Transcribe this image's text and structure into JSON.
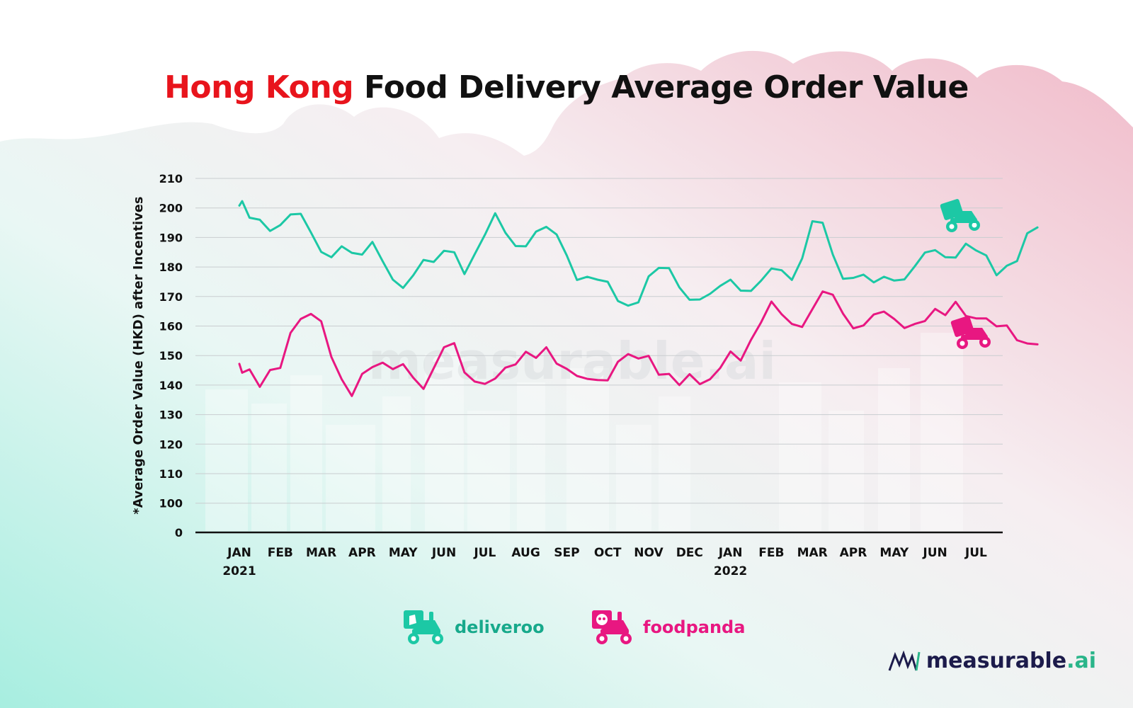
{
  "title": {
    "highlight": "Hong Kong",
    "rest": " Food Delivery Average Order Value"
  },
  "watermark": "measurable.ai",
  "brand": {
    "name": "measurable",
    "suffix": ".ai",
    "logo_icon": "measurable-logo-icon"
  },
  "colors": {
    "deliveroo": "#1cc8a5",
    "foodpanda": "#e81781",
    "title_highlight": "#e8141c",
    "brand": "#1c1b4b",
    "brand_accent": "#2ab58a"
  },
  "chart_data": {
    "type": "line",
    "title": "Hong Kong Food Delivery Average Order Value",
    "xlabel": "",
    "ylabel": "*Average Order Value (HKD) after Incentives",
    "yticks": [
      0,
      100,
      110,
      120,
      130,
      140,
      150,
      160,
      170,
      180,
      190,
      200,
      210
    ],
    "ylim": [
      90,
      210
    ],
    "axis_break": "0 shown at bottom; scale runs 100–210",
    "x_ticks": [
      {
        "label": "JAN",
        "sub": "2021"
      },
      {
        "label": "FEB",
        "sub": ""
      },
      {
        "label": "MAR",
        "sub": ""
      },
      {
        "label": "APR",
        "sub": ""
      },
      {
        "label": "MAY",
        "sub": ""
      },
      {
        "label": "JUN",
        "sub": ""
      },
      {
        "label": "JUL",
        "sub": ""
      },
      {
        "label": "AUG",
        "sub": ""
      },
      {
        "label": "SEP",
        "sub": ""
      },
      {
        "label": "OCT",
        "sub": ""
      },
      {
        "label": "NOV",
        "sub": ""
      },
      {
        "label": "DEC",
        "sub": ""
      },
      {
        "label": "JAN",
        "sub": "2022"
      },
      {
        "label": "FEB",
        "sub": ""
      },
      {
        "label": "MAR",
        "sub": ""
      },
      {
        "label": "APR",
        "sub": ""
      },
      {
        "label": "MAY",
        "sub": ""
      },
      {
        "label": "JUN",
        "sub": ""
      },
      {
        "label": "JUL",
        "sub": ""
      }
    ],
    "grid": true,
    "legend": "bottom-center",
    "series": [
      {
        "name": "deliveroo",
        "color": "#1cc8a5",
        "x": [
          0.0,
          0.07,
          0.25,
          0.5,
          0.75,
          1.0,
          1.25,
          1.5,
          1.75,
          2.0,
          2.25,
          2.5,
          2.75,
          3.0,
          3.25,
          3.5,
          3.75,
          4.0,
          4.25,
          4.5,
          4.75,
          5.0,
          5.25,
          5.5,
          5.75,
          6.0,
          6.25,
          6.5,
          6.75,
          7.0,
          7.25,
          7.5,
          7.75,
          8.0,
          8.25,
          8.5,
          8.75,
          9.0,
          9.25,
          9.5,
          9.75,
          10.0,
          10.25,
          10.5,
          10.75,
          11.0,
          11.25,
          11.5,
          11.75,
          12.0,
          12.25,
          12.5,
          12.75,
          13.0,
          13.25,
          13.5,
          13.75,
          14.0,
          14.25,
          14.5,
          14.75,
          15.0,
          15.25,
          15.5,
          15.75,
          16.0,
          16.25,
          16.5,
          16.75,
          17.0,
          17.25,
          17.5,
          17.75,
          18.0
        ],
        "values": [
          200.8,
          202.3,
          196.7,
          196.0,
          192.2,
          194.2,
          197.8,
          198.0,
          191.7,
          185.1,
          183.3,
          187.0,
          184.8,
          184.2,
          188.5,
          182.0,
          175.7,
          172.9,
          177.2,
          182.4,
          181.7,
          185.5,
          185.0,
          177.6,
          184.3,
          190.9,
          198.2,
          191.6,
          187.1,
          187.0,
          192.0,
          193.6,
          191.0,
          183.9,
          175.6,
          176.7,
          175.7,
          175.0,
          168.5,
          166.9,
          168.0,
          176.8,
          179.7,
          179.6,
          173.1,
          168.9,
          169.0,
          170.9,
          173.6,
          175.7,
          172.0,
          171.9,
          175.4,
          179.5,
          178.9,
          175.6,
          182.9,
          195.5,
          195.0,
          184.2,
          176.0,
          176.3,
          177.4,
          174.8,
          176.7,
          175.4,
          175.8,
          180.2,
          184.9,
          185.7,
          183.3,
          183.2,
          187.9,
          185.6
        ]
      },
      {
        "name": "foodpanda",
        "color": "#e81781",
        "x": [
          0.0,
          0.07,
          0.25,
          0.5,
          0.75,
          1.0,
          1.25,
          1.5,
          1.75,
          2.0,
          2.25,
          2.5,
          2.75,
          3.0,
          3.25,
          3.5,
          3.75,
          4.0,
          4.25,
          4.5,
          4.75,
          5.0,
          5.25,
          5.5,
          5.75,
          6.0,
          6.25,
          6.5,
          6.75,
          7.0,
          7.25,
          7.5,
          7.75,
          8.0,
          8.25,
          8.5,
          8.75,
          9.0,
          9.25,
          9.5,
          9.75,
          10.0,
          10.25,
          10.5,
          10.75,
          11.0,
          11.25,
          11.5,
          11.75,
          12.0,
          12.25,
          12.5,
          12.75,
          13.0,
          13.25,
          13.5,
          13.75,
          14.0,
          14.25,
          14.5,
          14.75,
          15.0,
          15.25,
          15.5,
          15.75,
          16.0,
          16.25,
          16.5,
          16.75,
          17.0,
          17.25,
          17.5,
          17.75,
          18.0
        ],
        "values": [
          147.2,
          144.2,
          145.3,
          139.4,
          145.1,
          145.8,
          157.7,
          162.4,
          164.1,
          161.6,
          149.5,
          142.0,
          136.3,
          143.8,
          146.1,
          147.6,
          145.4,
          147.1,
          142.5,
          138.7,
          145.7,
          152.8,
          154.2,
          144.3,
          141.2,
          140.4,
          142.2,
          145.9,
          147.0,
          151.3,
          149.2,
          152.8,
          147.3,
          145.5,
          143.1,
          142.1,
          141.7,
          141.6,
          147.9,
          150.5,
          149.0,
          149.9,
          143.5,
          143.8,
          140.0,
          143.7,
          140.3,
          142.0,
          145.8,
          151.4,
          148.3,
          155.3,
          161.3,
          168.3,
          164.0,
          160.7,
          159.7,
          165.7,
          171.7,
          170.6,
          164.2,
          159.2,
          160.2,
          163.9,
          164.9,
          162.4,
          159.3,
          160.7,
          161.7,
          165.8,
          163.7,
          168.2,
          163.4,
          162.6
        ]
      }
    ],
    "series_tail": [
      {
        "name": "deliveroo",
        "x": [
          18.25,
          18.5,
          18.75,
          19.0,
          19.25,
          19.5
        ],
        "values": [
          183.9,
          177.2,
          180.4,
          182.0,
          191.4,
          193.4
        ]
      },
      {
        "name": "foodpanda",
        "x": [
          18.25,
          18.5,
          18.75,
          19.0,
          19.25,
          19.5
        ],
        "values": [
          162.6,
          159.9,
          160.2,
          155.2,
          154.1,
          153.8
        ]
      }
    ],
    "legend_entries": [
      {
        "name": "deliveroo",
        "icon": "deliveroo-scooter-icon"
      },
      {
        "name": "foodpanda",
        "icon": "foodpanda-scooter-icon"
      }
    ]
  }
}
